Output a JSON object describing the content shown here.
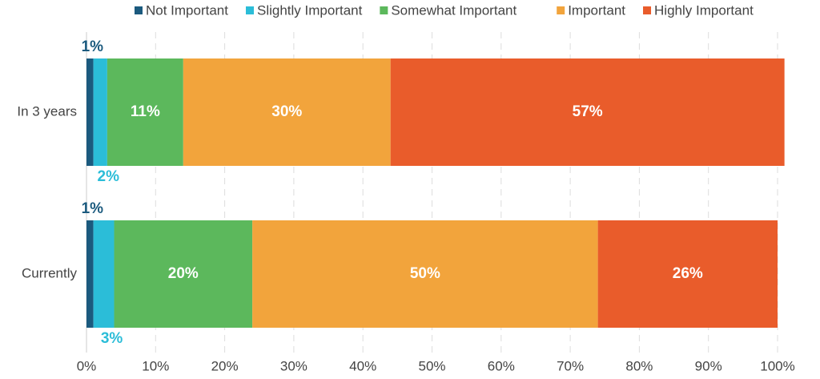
{
  "chart_data": {
    "type": "stacked-barh",
    "categories": [
      "In 3 years",
      "Currently"
    ],
    "series": [
      {
        "name": "Not Important",
        "color": "#1b5a7e",
        "values": [
          1,
          1
        ],
        "value_labels": [
          "1%",
          "1%"
        ]
      },
      {
        "name": "Slightly Important",
        "color": "#2bbdd8",
        "values": [
          2,
          3
        ],
        "value_labels": [
          "2%",
          "3%"
        ]
      },
      {
        "name": "Somewhat Important",
        "color": "#5cb85c",
        "values": [
          11,
          20
        ],
        "value_labels": [
          "11%",
          "20%"
        ]
      },
      {
        "name": "Important",
        "color": "#f2a43c",
        "values": [
          30,
          50
        ],
        "value_labels": [
          "30%",
          "50%"
        ]
      },
      {
        "name": "Highly Important",
        "color": "#e95c2b",
        "values": [
          57,
          26
        ],
        "value_labels": [
          "57%",
          "26%"
        ]
      }
    ],
    "xlim": [
      0,
      100
    ],
    "xticks": [
      {
        "value": 0,
        "label": "0%"
      },
      {
        "value": 10,
        "label": "10%"
      },
      {
        "value": 20,
        "label": "20%"
      },
      {
        "value": 30,
        "label": "30%"
      },
      {
        "value": 40,
        "label": "40%"
      },
      {
        "value": 50,
        "label": "50%"
      },
      {
        "value": 60,
        "label": "60%"
      },
      {
        "value": 70,
        "label": "70%"
      },
      {
        "value": 80,
        "label": "80%"
      },
      {
        "value": 90,
        "label": "90%"
      },
      {
        "value": 100,
        "label": "100%"
      }
    ],
    "grid": true,
    "legend": "top"
  }
}
